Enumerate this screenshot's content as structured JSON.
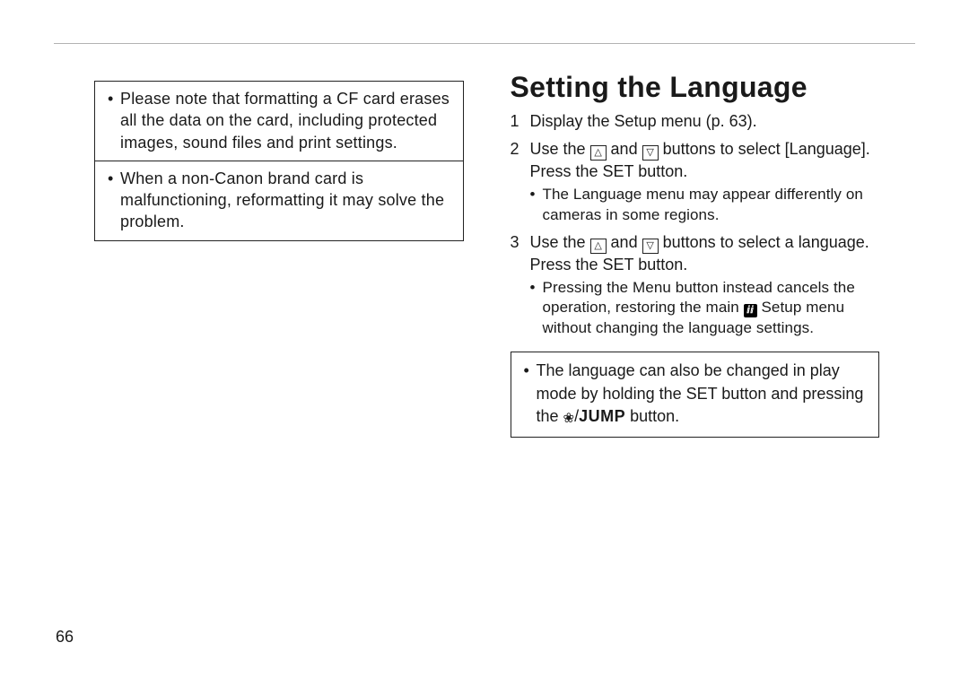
{
  "page_number": "66",
  "left": {
    "warning_box": "Please note that formatting a CF card erases all the data on the card, including protected images, sound files and print settings.",
    "tip_box": "When a non-Canon brand card is malfunctioning, reformatting it may solve the problem."
  },
  "right": {
    "heading": "Setting the Language",
    "step1": "Display the Setup menu (p. 63).",
    "step2_a": "Use the ",
    "step2_b": " and ",
    "step2_c": " buttons to select [Language]. Press the SET button.",
    "step2_sub": "The Language menu may appear differently on cameras in some regions.",
    "step3_a": "Use the ",
    "step3_b": " and ",
    "step3_c": " buttons to select a language. Press the SET button.",
    "step3_sub_a": "Pressing the Menu button instead cancels the operation, restoring the main ",
    "step3_sub_b": " Setup menu without changing the language settings.",
    "note_a": "The language can also be changed in play mode by holding the SET button and pressing the ",
    "note_b": " button.",
    "jump_label": "JUMP",
    "icon_setup": "ⅈⅈ"
  }
}
